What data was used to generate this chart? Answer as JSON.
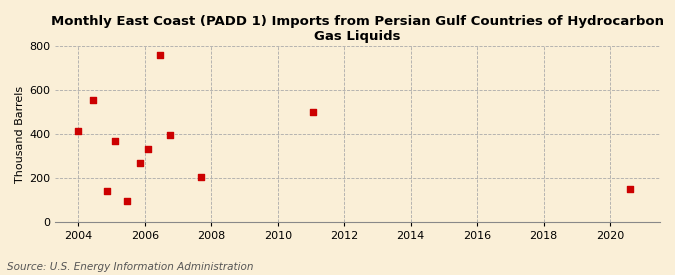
{
  "title": "Monthly East Coast (PADD 1) Imports from Persian Gulf Countries of Hydrocarbon Gas Liquids",
  "ylabel": "Thousand Barrels",
  "source": "Source: U.S. Energy Information Administration",
  "background_color": "#faefd7",
  "plot_bg_color": "#faefd7",
  "scatter_color": "#cc0000",
  "marker": "s",
  "marker_size": 4,
  "xlim": [
    2003.3,
    2021.5
  ],
  "ylim": [
    0,
    800
  ],
  "xticks": [
    2004,
    2006,
    2008,
    2010,
    2012,
    2014,
    2016,
    2018,
    2020
  ],
  "yticks": [
    0,
    200,
    400,
    600,
    800
  ],
  "data_x": [
    2004.0,
    2004.45,
    2004.85,
    2005.1,
    2005.45,
    2005.85,
    2006.1,
    2006.45,
    2006.75,
    2007.7,
    2011.05,
    2020.6
  ],
  "data_y": [
    415,
    553,
    140,
    370,
    95,
    268,
    330,
    762,
    395,
    205,
    500,
    150
  ],
  "title_fontsize": 9.5,
  "tick_fontsize": 8,
  "ylabel_fontsize": 8,
  "source_fontsize": 7.5
}
